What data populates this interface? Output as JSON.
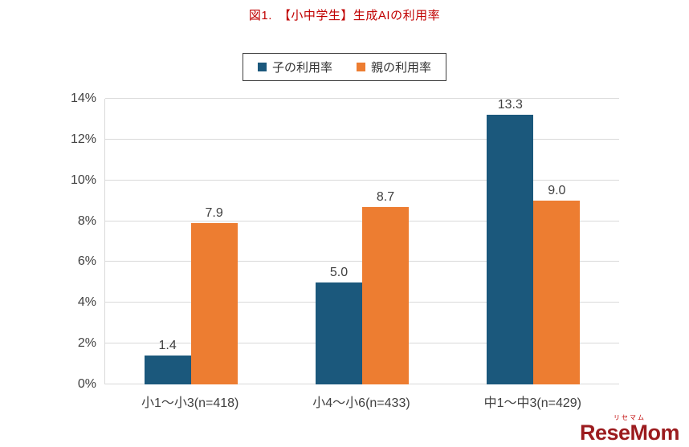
{
  "title": "図1.　【小中学生】生成AIの利用率",
  "chart_data": {
    "type": "bar",
    "categories": [
      "小1〜小3(n=418)",
      "小4〜小6(n=433)",
      "中1〜中3(n=429)"
    ],
    "series": [
      {
        "name": "子の利用率",
        "color": "#1B587C",
        "values": [
          1.4,
          5.0,
          13.3
        ]
      },
      {
        "name": "親の利用率",
        "color": "#ED7D31",
        "values": [
          7.9,
          8.7,
          9.0
        ]
      }
    ],
    "title": "図1.　【小中学生】生成AIの利用率",
    "xlabel": "",
    "ylabel": "",
    "ylim": [
      0,
      14
    ],
    "ytick_step": 2,
    "ytick_suffix": "%",
    "grid": true,
    "legend_position": "top",
    "value_label_decimals": 1
  },
  "logo": {
    "ruby": "リセマム",
    "text": "ReseMom"
  },
  "colors": {
    "title": "#C00000",
    "axis_text": "#404040",
    "grid": "#D9D9D9"
  }
}
